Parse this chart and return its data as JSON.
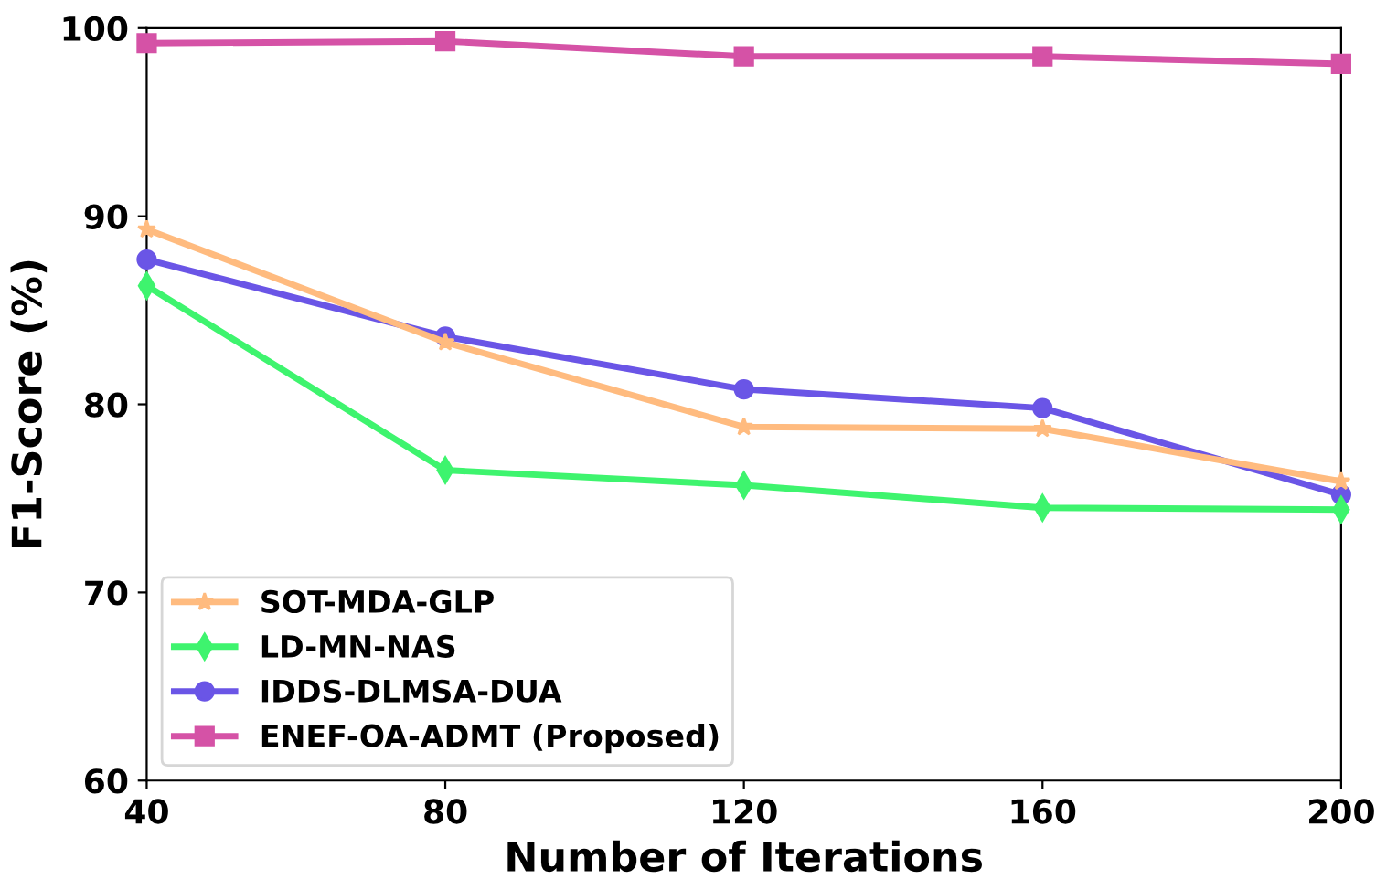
{
  "chart_data": {
    "type": "line",
    "xlabel": "Number of Iterations",
    "ylabel": "F1-Score (%)",
    "x": [
      40,
      80,
      120,
      160,
      200
    ],
    "xlim": [
      40,
      200
    ],
    "xticks": [
      40,
      80,
      120,
      160,
      200
    ],
    "ylim": [
      60,
      100
    ],
    "yticks": [
      60,
      70,
      80,
      90,
      100
    ],
    "grid": false,
    "legend": "bottom left",
    "line_style": "solid",
    "series": [
      {
        "name": "SOT-MDA-GLP",
        "color": "#ffbb7f",
        "marker": "star",
        "values": [
          89.3,
          83.3,
          78.8,
          78.7,
          75.9
        ]
      },
      {
        "name": "LD-MN-NAS",
        "color": "#3ef46e",
        "marker": "diamond",
        "values": [
          86.3,
          76.5,
          75.7,
          74.5,
          74.4
        ]
      },
      {
        "name": "IDDS-DLMSA-DUA",
        "color": "#6a55e6",
        "marker": "circle",
        "values": [
          87.7,
          83.6,
          80.8,
          79.8,
          75.2
        ]
      },
      {
        "name": "ENEF-OA-ADMT (Proposed)",
        "color": "#d552a6",
        "marker": "square",
        "values": [
          99.2,
          99.3,
          98.5,
          98.5,
          98.1
        ]
      }
    ]
  }
}
